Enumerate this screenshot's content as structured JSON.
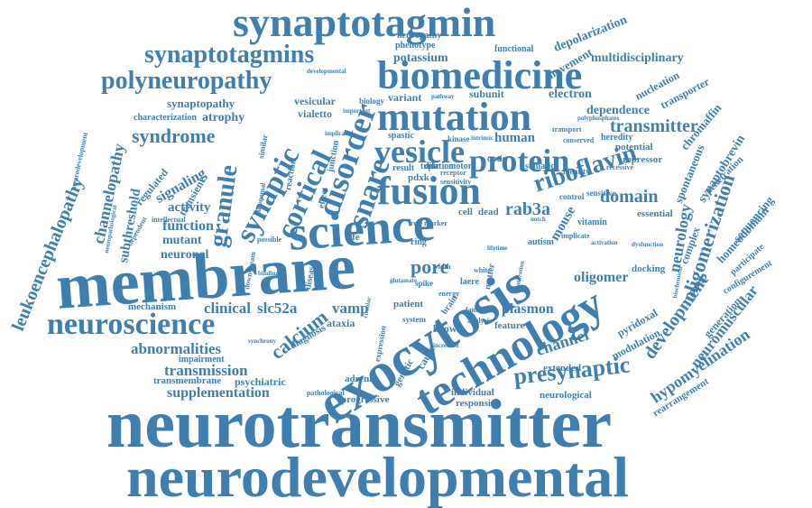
{
  "cloud": {
    "color": "#3f7fb0",
    "words": [
      {
        "text": "neurotransmitter",
        "size": 76
      },
      {
        "text": "neurodevelopmental",
        "size": 64
      },
      {
        "text": "membrane",
        "size": 72
      },
      {
        "text": "exocytosis",
        "size": 62
      },
      {
        "text": "science",
        "size": 54
      },
      {
        "text": "technology",
        "size": 50
      },
      {
        "text": "synaptotagmin",
        "size": 46
      },
      {
        "text": "biomedicine",
        "size": 44
      },
      {
        "text": "mutation",
        "size": 44
      },
      {
        "text": "fusion",
        "size": 44
      },
      {
        "text": "protein",
        "size": 36
      },
      {
        "text": "vesicle",
        "size": 36
      },
      {
        "text": "disorder",
        "size": 36
      },
      {
        "text": "neuroscience",
        "size": 34
      },
      {
        "text": "polyneuropathy",
        "size": 28
      },
      {
        "text": "synaptotagmins",
        "size": 28
      },
      {
        "text": "snare",
        "size": 34
      },
      {
        "text": "synaptic",
        "size": 32
      },
      {
        "text": "cortical",
        "size": 32
      },
      {
        "text": "presynaptic",
        "size": 26
      },
      {
        "text": "riboflavin",
        "size": 28
      },
      {
        "text": "granule",
        "size": 28
      },
      {
        "text": "leukoencephalopathy",
        "size": 20
      },
      {
        "text": "oligomerization",
        "size": 22
      },
      {
        "text": "syndrome",
        "size": 22
      },
      {
        "text": "development",
        "size": 20
      },
      {
        "text": "calcium",
        "size": 22
      },
      {
        "text": "pore",
        "size": 22
      },
      {
        "text": "domain",
        "size": 20
      },
      {
        "text": "rab3a",
        "size": 20
      },
      {
        "text": "transmitter",
        "size": 20
      },
      {
        "text": "hypomyelination",
        "size": 18
      },
      {
        "text": "channelopathy",
        "size": 18
      },
      {
        "text": "neuromuscular",
        "size": 17
      },
      {
        "text": "abnormalities",
        "size": 17
      },
      {
        "text": "transmission",
        "size": 17
      },
      {
        "text": "supplementation",
        "size": 16
      },
      {
        "text": "channel",
        "size": 18
      },
      {
        "text": "neurology",
        "size": 18
      },
      {
        "text": "clinical",
        "size": 17
      },
      {
        "text": "slc52a",
        "size": 17
      },
      {
        "text": "vamp",
        "size": 17
      },
      {
        "text": "function",
        "size": 16
      },
      {
        "text": "signaling",
        "size": 16
      },
      {
        "text": "plasmon",
        "size": 16
      },
      {
        "text": "oligomer",
        "size": 16
      },
      {
        "text": "human",
        "size": 15
      },
      {
        "text": "subthreshold",
        "size": 15
      },
      {
        "text": "activity",
        "size": 15
      },
      {
        "text": "mutant",
        "size": 14
      },
      {
        "text": "neuronal",
        "size": 14
      },
      {
        "text": "mouse",
        "size": 15
      },
      {
        "text": "potassium",
        "size": 14
      },
      {
        "text": "depolarization",
        "size": 14
      },
      {
        "text": "movement",
        "size": 13
      },
      {
        "text": "multidisciplinary",
        "size": 14
      },
      {
        "text": "electron",
        "size": 14
      },
      {
        "text": "dependence",
        "size": 14
      },
      {
        "text": "synaptopathy",
        "size": 13
      },
      {
        "text": "atrophy",
        "size": 14
      },
      {
        "text": "vesicular",
        "size": 12
      },
      {
        "text": "vialetto",
        "size": 12
      },
      {
        "text": "variant",
        "size": 12
      },
      {
        "text": "subunit",
        "size": 12
      },
      {
        "text": "nucleation",
        "size": 12
      },
      {
        "text": "transporter",
        "size": 12
      },
      {
        "text": "synaptobrevin",
        "size": 14
      },
      {
        "text": "chromaffin",
        "size": 13
      },
      {
        "text": "spontaneous",
        "size": 13
      },
      {
        "text": "homeodomain",
        "size": 13
      },
      {
        "text": "sequencing",
        "size": 13
      },
      {
        "text": "regulated",
        "size": 12
      },
      {
        "text": "transient",
        "size": 12
      },
      {
        "text": "mechanism",
        "size": 11
      },
      {
        "text": "transmembrane",
        "size": 11
      },
      {
        "text": "psychiatric",
        "size": 12
      },
      {
        "text": "adrenal",
        "size": 11
      },
      {
        "text": "progressive",
        "size": 11
      },
      {
        "text": "individual",
        "size": 11
      },
      {
        "text": "responsive",
        "size": 11
      },
      {
        "text": "neurological",
        "size": 11
      },
      {
        "text": "extended",
        "size": 11
      },
      {
        "text": "modulation",
        "size": 12
      },
      {
        "text": "pyridoxal",
        "size": 12
      },
      {
        "text": "generation",
        "size": 12
      },
      {
        "text": "rearrangement",
        "size": 11
      },
      {
        "text": "complex",
        "size": 12
      },
      {
        "text": "docking",
        "size": 11
      },
      {
        "text": "essential",
        "size": 11
      },
      {
        "text": "vitamin",
        "size": 10
      },
      {
        "text": "autism",
        "size": 10
      },
      {
        "text": "feature",
        "size": 11
      },
      {
        "text": "ataxia",
        "size": 12
      },
      {
        "text": "brown",
        "size": 12
      },
      {
        "text": "cause",
        "size": 12
      },
      {
        "text": "genetic",
        "size": 11
      },
      {
        "text": "patient",
        "size": 11
      },
      {
        "text": "diagnosis",
        "size": 11
      },
      {
        "text": "impairment",
        "size": 10
      },
      {
        "text": "characterization",
        "size": 10
      },
      {
        "text": "neuropathy",
        "size": 10
      },
      {
        "text": "phenotype",
        "size": 10
      },
      {
        "text": "functional",
        "size": 10
      },
      {
        "text": "spastic",
        "size": 10
      },
      {
        "text": "dilation",
        "size": 10
      },
      {
        "text": "kinase",
        "size": 9
      },
      {
        "text": "somatic",
        "size": 10
      },
      {
        "text": "repressor",
        "size": 11
      },
      {
        "text": "potential",
        "size": 11
      },
      {
        "text": "heredity",
        "size": 10
      },
      {
        "text": "identity",
        "size": 9
      },
      {
        "text": "control",
        "size": 9
      },
      {
        "text": "sensitive",
        "size": 9
      },
      {
        "text": "penetration",
        "size": 11
      },
      {
        "text": "participate",
        "size": 10
      },
      {
        "text": "configurement",
        "size": 10
      },
      {
        "text": "cell",
        "size": 11
      },
      {
        "text": "dead",
        "size": 11
      },
      {
        "text": "life",
        "size": 11
      },
      {
        "text": "ring",
        "size": 10
      },
      {
        "text": "optic",
        "size": 10
      },
      {
        "text": "pdxk",
        "size": 11
      },
      {
        "text": "topic",
        "size": 10
      },
      {
        "text": "motor",
        "size": 10
      },
      {
        "text": "result",
        "size": 10
      },
      {
        "text": "junction",
        "size": 10
      },
      {
        "text": "effect",
        "size": 10
      },
      {
        "text": "reaction",
        "size": 10
      },
      {
        "text": "similar",
        "size": 9
      },
      {
        "text": "laere",
        "size": 10
      },
      {
        "text": "brain",
        "size": 10
      },
      {
        "text": "matter",
        "size": 10
      },
      {
        "text": "spike",
        "size": 9
      },
      {
        "text": "width",
        "size": 8
      },
      {
        "text": "system",
        "size": 9
      },
      {
        "text": "expression",
        "size": 9
      },
      {
        "text": "biology",
        "size": 9
      },
      {
        "text": "intellectual",
        "size": 8
      },
      {
        "text": "dependent",
        "size": 8
      },
      {
        "text": "downstream",
        "size": 8
      },
      {
        "text": "possible",
        "size": 8
      },
      {
        "text": "autonomal",
        "size": 8
      },
      {
        "text": "neuropathological",
        "size": 7
      },
      {
        "text": "neurodevelopment",
        "size": 8
      },
      {
        "text": "conserved",
        "size": 8
      },
      {
        "text": "recessive",
        "size": 8
      },
      {
        "text": "transport",
        "size": 8
      },
      {
        "text": "implicate",
        "size": 8
      },
      {
        "text": "disease",
        "size": 10
      },
      {
        "text": "polyphosphates",
        "size": 7
      },
      {
        "text": "biochemical",
        "size": 7
      },
      {
        "text": "familial",
        "size": 8
      },
      {
        "text": "analysis",
        "size": 8
      },
      {
        "text": "white",
        "size": 8
      },
      {
        "text": "energy",
        "size": 8
      },
      {
        "text": "glutamate",
        "size": 7
      },
      {
        "text": "receptor",
        "size": 8
      },
      {
        "text": "sensitivity",
        "size": 8
      },
      {
        "text": "pathway",
        "size": 7
      },
      {
        "text": "intrinsic",
        "size": 7
      },
      {
        "text": "notch",
        "size": 7
      },
      {
        "text": "binding",
        "size": 7
      },
      {
        "text": "circular",
        "size": 7
      },
      {
        "text": "synchrony",
        "size": 7
      },
      {
        "text": "developmental",
        "size": 7
      },
      {
        "text": "important",
        "size": 7
      },
      {
        "text": "implicated",
        "size": 7
      },
      {
        "text": "role marker",
        "size": 8
      },
      {
        "text": "activation",
        "size": 7
      },
      {
        "text": "dysfunction",
        "size": 7
      },
      {
        "text": "pathological",
        "size": 8
      },
      {
        "text": "increased",
        "size": 7
      },
      {
        "text": "maturation",
        "size": 7
      },
      {
        "text": "lifetime",
        "size": 7
      }
    ]
  }
}
